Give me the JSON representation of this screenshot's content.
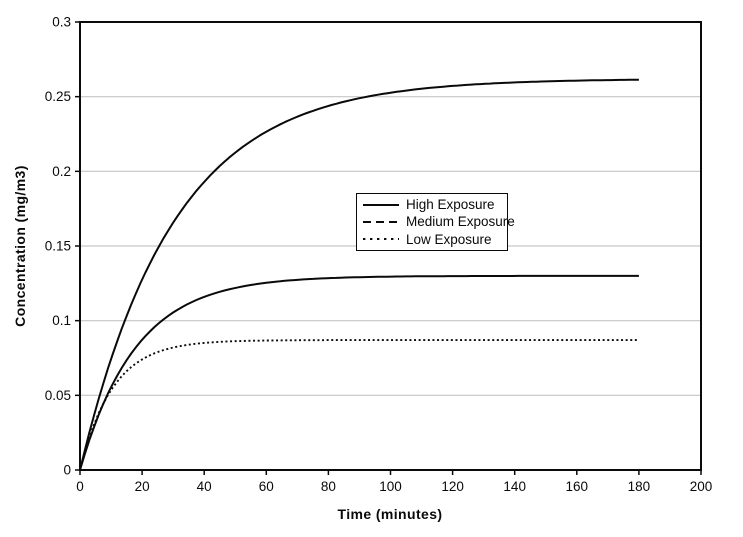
{
  "figure": {
    "background": "#ffffff"
  },
  "chart_data": {
    "type": "line",
    "title": "",
    "xlabel": "Time (minutes)",
    "ylabel": "Concentration (mg/m3)",
    "xlim": [
      0,
      200
    ],
    "ylim": [
      0,
      0.3
    ],
    "x_tick_values": [
      0,
      20,
      40,
      60,
      80,
      100,
      120,
      140,
      160,
      180,
      200
    ],
    "x_tick_labels": [
      "0",
      "20",
      "40",
      "60",
      "80",
      "100",
      "120",
      "140",
      "160",
      "180",
      "200"
    ],
    "y_tick_values": [
      0,
      0.05,
      0.1,
      0.15,
      0.2,
      0.25,
      0.3
    ],
    "y_tick_labels": [
      "0",
      "0.05",
      "0.1",
      "0.15",
      "0.2",
      "0.25",
      "0.3"
    ],
    "grid": "horizontal",
    "grid_color": "#c6c6c6",
    "axis_color": "#0a0a0a",
    "line_color": "#0a0a0a",
    "legend": {
      "position": "upper-middle-inside",
      "border": true
    },
    "series": [
      {
        "name": "High Exposure",
        "legend_line_style": "solid",
        "curve_appearance": "solid",
        "model": {
          "plateau": 0.262,
          "tau_minutes": 30,
          "t_start": 0,
          "t_end": 180
        },
        "x": [
          0,
          10,
          20,
          30,
          40,
          50,
          60,
          70,
          80,
          90,
          100,
          110,
          120,
          130,
          140,
          150,
          160,
          170,
          180
        ],
        "values": [
          0,
          0.0743,
          0.1275,
          0.1656,
          0.1929,
          0.2125,
          0.2266,
          0.2366,
          0.2438,
          0.249,
          0.2526,
          0.2553,
          0.2572,
          0.2586,
          0.2595,
          0.2602,
          0.2607,
          0.2611,
          0.2614
        ]
      },
      {
        "name": "Medium Exposure",
        "legend_line_style": "dashed",
        "curve_appearance": "solid",
        "model": {
          "plateau": 0.13,
          "tau_minutes": 18,
          "t_start": 0,
          "t_end": 180
        },
        "x": [
          0,
          10,
          20,
          30,
          40,
          50,
          60,
          70,
          80,
          90,
          100,
          110,
          120,
          130,
          140,
          150,
          160,
          170,
          180
        ],
        "values": [
          0,
          0.0554,
          0.0872,
          0.1054,
          0.1159,
          0.1219,
          0.1254,
          0.1273,
          0.1285,
          0.1291,
          0.1295,
          0.1297,
          0.1298,
          0.1299,
          0.1299,
          0.13,
          0.13,
          0.13,
          0.13
        ]
      },
      {
        "name": "Low Exposure",
        "legend_line_style": "dotted",
        "curve_appearance": "dotted",
        "model": {
          "plateau": 0.087,
          "tau_minutes": 10.5,
          "t_start": 0,
          "t_end": 180
        },
        "x": [
          0,
          10,
          20,
          30,
          40,
          50,
          60,
          70,
          80,
          90,
          100,
          110,
          120,
          130,
          140,
          150,
          160,
          170,
          180
        ],
        "values": [
          0,
          0.0534,
          0.0741,
          0.082,
          0.0851,
          0.0863,
          0.0867,
          0.0869,
          0.087,
          0.087,
          0.087,
          0.087,
          0.087,
          0.087,
          0.087,
          0.087,
          0.087,
          0.087,
          0.087
        ]
      }
    ]
  }
}
